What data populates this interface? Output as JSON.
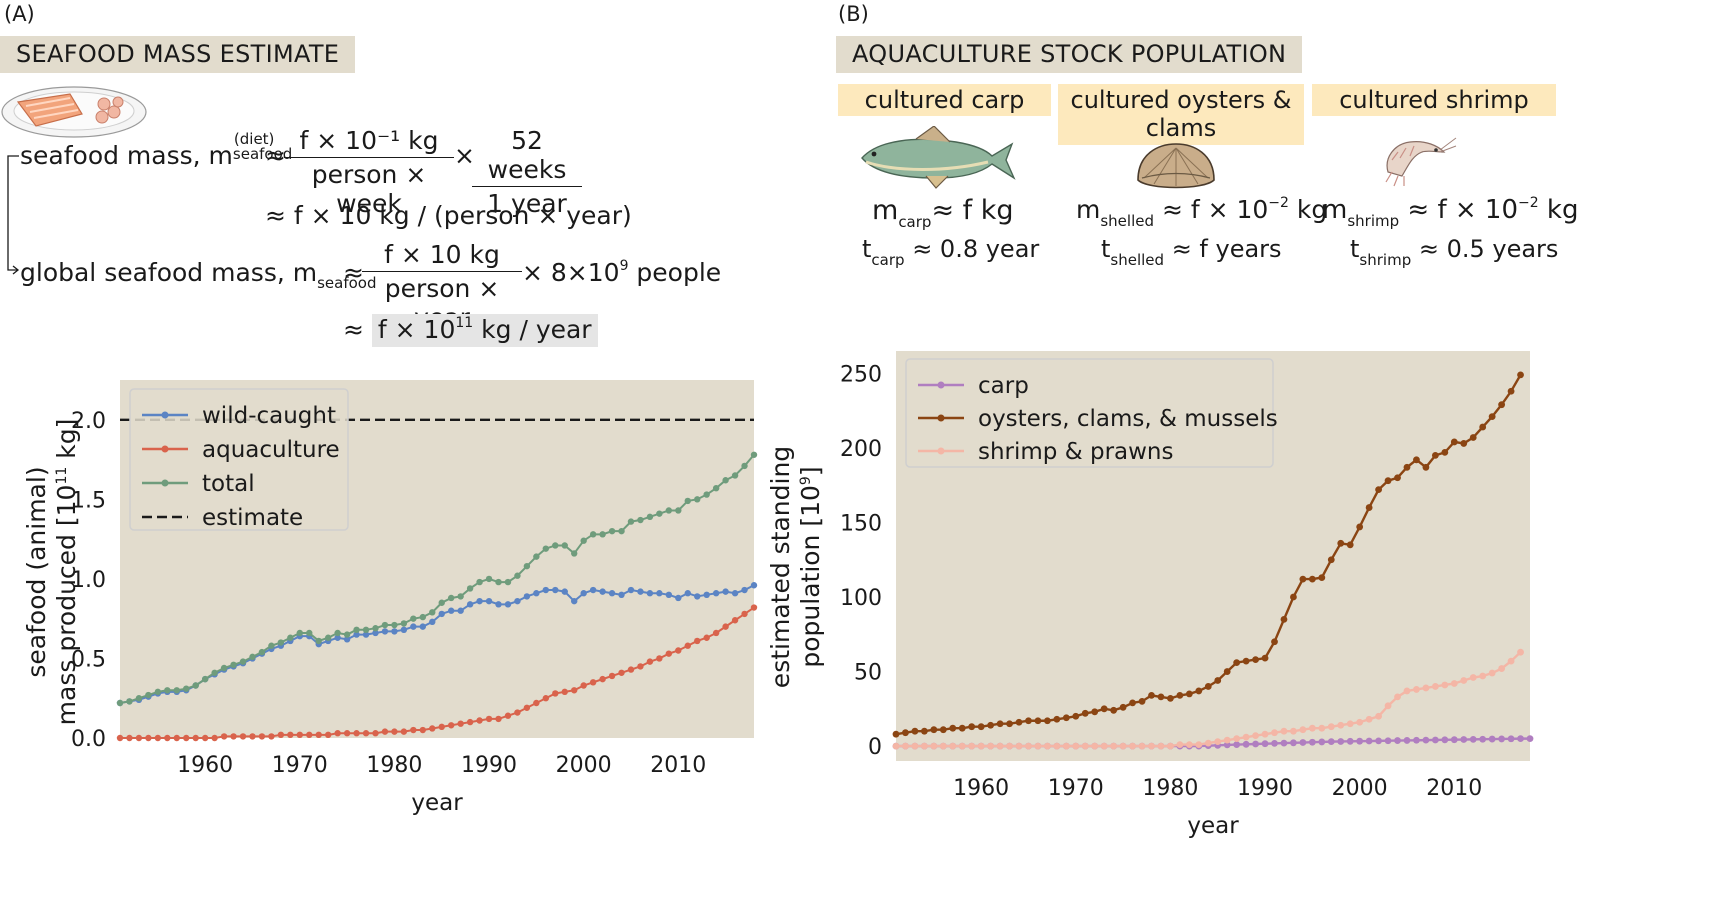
{
  "panel_a": {
    "letter": "(A)",
    "banner": "SEAFOOD MASS ESTIMATE",
    "eq1_lhs": "seafood mass, m",
    "eq1_sub": "seafood",
    "eq1_sup": "(diet)",
    "approx": "≈",
    "eq1_num1": "f × 10⁻¹ kg",
    "eq1_den1": "person × week",
    "times": "×",
    "eq1_num2": "52 weeks",
    "eq1_den2": "1 year",
    "eq2": "≈ f × 10 kg / (person × year)",
    "eq3_lhs": "global seafood mass, m",
    "eq3_sub": "seafood",
    "eq3_num": "f × 10 kg",
    "eq3_den": "person × year",
    "eq3_tail": "× 8×10",
    "eq3_tail_sup": "9",
    "eq3_tail_end": " people",
    "eq4_prefix": "≈",
    "eq4_main": "f × 10",
    "eq4_sup": "11",
    "eq4_end": " kg / year"
  },
  "panel_b": {
    "letter": "(B)",
    "banner": "AQUACULTURE STOCK POPULATION",
    "carp_tag": "cultured carp",
    "oysters_tag_l1": "cultured oysters &",
    "oysters_tag_l2": "clams",
    "shrimp_tag": "cultured shrimp",
    "carp_m": "m",
    "carp_m_sub": "carp",
    "carp_m_rhs": "≈ f kg",
    "carp_t": "t",
    "carp_t_sub": "carp",
    "carp_t_rhs": " ≈ 0.8 year",
    "shell_m": "m",
    "shell_m_sub": "shelled",
    "shell_m_rhs": " ≈ f × 10",
    "shell_m_sup": "−2",
    "shell_m_end": " kg",
    "shell_t": "t",
    "shell_t_sub": "shelled",
    "shell_t_rhs": " ≈ f years",
    "shrimp_m": "m",
    "shrimp_m_sub": "shrimp",
    "shrimp_m_rhs": " ≈ f × 10",
    "shrimp_m_sup": "−2",
    "shrimp_m_end": " kg",
    "shrimp_t": "t",
    "shrimp_t_sub": "shrimp",
    "shrimp_t_rhs": " ≈ 0.5 years"
  },
  "colors": {
    "plot_bg": "#e2dccd",
    "wild": "#5b84c4",
    "aqua": "#d9634c",
    "total": "#6f9c7c",
    "carp": "#b07ec0",
    "oysters": "#8b4513",
    "shrimp": "#f4b6a6"
  },
  "chart_data": [
    {
      "type": "line",
      "xlabel": "year",
      "ylabel_l1": "seafood (animal)",
      "ylabel_l2": "mass produced [10",
      "ylabel_sup": "11",
      "ylabel_end": " kg]",
      "xlim": [
        1951,
        2018
      ],
      "ylim": [
        0,
        2.25
      ],
      "xticks": [
        1960,
        1970,
        1980,
        1990,
        2000,
        2010
      ],
      "yticks": [
        0.0,
        0.5,
        1.0,
        1.5,
        2.0
      ],
      "ytick_labels": [
        "0.0",
        "0.5",
        "1.0",
        "1.5",
        "2.0"
      ],
      "legend_position": "top-left",
      "estimate": {
        "name": "estimate",
        "value": 2.0
      },
      "x_start": 1951,
      "series": [
        {
          "name": "wild-caught",
          "color": "#5b84c4",
          "values": [
            0.22,
            0.23,
            0.24,
            0.26,
            0.28,
            0.29,
            0.29,
            0.3,
            0.33,
            0.37,
            0.4,
            0.43,
            0.45,
            0.47,
            0.5,
            0.53,
            0.56,
            0.58,
            0.61,
            0.64,
            0.64,
            0.59,
            0.61,
            0.63,
            0.62,
            0.65,
            0.65,
            0.66,
            0.67,
            0.67,
            0.68,
            0.7,
            0.7,
            0.73,
            0.78,
            0.8,
            0.8,
            0.84,
            0.86,
            0.86,
            0.84,
            0.84,
            0.86,
            0.89,
            0.91,
            0.93,
            0.93,
            0.92,
            0.86,
            0.91,
            0.93,
            0.92,
            0.91,
            0.9,
            0.93,
            0.92,
            0.91,
            0.91,
            0.9,
            0.88,
            0.91,
            0.89,
            0.9,
            0.91,
            0.92,
            0.91,
            0.93,
            0.96
          ]
        },
        {
          "name": "aquaculture",
          "color": "#d9634c",
          "values": [
            0.0,
            0.0,
            0.0,
            0.0,
            0.0,
            0.0,
            0.0,
            0.0,
            0.0,
            0.0,
            0.0,
            0.01,
            0.01,
            0.01,
            0.01,
            0.01,
            0.01,
            0.02,
            0.02,
            0.02,
            0.02,
            0.02,
            0.02,
            0.03,
            0.03,
            0.03,
            0.03,
            0.03,
            0.04,
            0.04,
            0.04,
            0.05,
            0.05,
            0.06,
            0.07,
            0.08,
            0.09,
            0.1,
            0.11,
            0.12,
            0.12,
            0.14,
            0.16,
            0.19,
            0.22,
            0.25,
            0.28,
            0.29,
            0.3,
            0.33,
            0.35,
            0.37,
            0.39,
            0.41,
            0.43,
            0.45,
            0.48,
            0.5,
            0.53,
            0.55,
            0.58,
            0.61,
            0.63,
            0.66,
            0.7,
            0.74,
            0.78,
            0.82
          ]
        },
        {
          "name": "total",
          "color": "#6f9c7c",
          "values": [
            0.22,
            0.23,
            0.25,
            0.27,
            0.29,
            0.3,
            0.3,
            0.31,
            0.33,
            0.37,
            0.41,
            0.44,
            0.46,
            0.48,
            0.51,
            0.54,
            0.58,
            0.6,
            0.63,
            0.66,
            0.66,
            0.61,
            0.63,
            0.66,
            0.65,
            0.68,
            0.68,
            0.69,
            0.71,
            0.71,
            0.72,
            0.75,
            0.76,
            0.79,
            0.85,
            0.88,
            0.89,
            0.94,
            0.98,
            1.0,
            0.98,
            0.98,
            1.02,
            1.08,
            1.14,
            1.19,
            1.21,
            1.21,
            1.16,
            1.24,
            1.28,
            1.28,
            1.3,
            1.3,
            1.36,
            1.37,
            1.39,
            1.41,
            1.43,
            1.43,
            1.49,
            1.5,
            1.53,
            1.57,
            1.62,
            1.65,
            1.71,
            1.78
          ]
        },
        {
          "name": "estimate",
          "style": "dashed",
          "color": "#1a1a1a",
          "values": [
            2.0,
            2.0
          ]
        }
      ]
    },
    {
      "type": "line",
      "xlabel": "year",
      "ylabel_l1": "estimated standing",
      "ylabel_l2": "population [10",
      "ylabel_sup": "9",
      "ylabel_end": "]",
      "xlim": [
        1951,
        2018
      ],
      "ylim": [
        -10,
        265
      ],
      "xticks": [
        1960,
        1970,
        1980,
        1990,
        2000,
        2010
      ],
      "yticks": [
        0,
        50,
        100,
        150,
        200,
        250
      ],
      "legend_position": "top-left",
      "x_start": 1951,
      "series": [
        {
          "name": "carp",
          "color": "#b07ec0",
          "values": [
            0.0,
            0.0,
            0.0,
            0.0,
            0.0,
            0.0,
            0.0,
            0.0,
            0.0,
            0.0,
            0.0,
            0.0,
            0.0,
            0.0,
            0.0,
            0.0,
            0.0,
            0.0,
            0.0,
            0.0,
            0.0,
            0.0,
            0.0,
            0.0,
            0.0,
            0.0,
            0.0,
            0.0,
            0.0,
            0.0,
            0.0,
            0.0,
            0.0,
            0.3,
            0.5,
            0.8,
            1.0,
            1.2,
            1.4,
            1.6,
            1.8,
            2.0,
            2.2,
            2.4,
            2.6,
            2.8,
            3.0,
            3.1,
            3.2,
            3.3,
            3.4,
            3.5,
            3.6,
            3.7,
            3.8,
            3.9,
            4.0,
            4.1,
            4.2,
            4.3,
            4.4,
            4.5,
            4.6,
            4.7,
            4.8,
            4.9,
            5.0,
            5.0
          ]
        },
        {
          "name": "oysters, clams, & mussels",
          "color": "#8b4513",
          "values": [
            8,
            9,
            10,
            10,
            11,
            11,
            12,
            12,
            13,
            13,
            14,
            15,
            15,
            16,
            17,
            17,
            17,
            18,
            19,
            20,
            22,
            23,
            25,
            24,
            26,
            29,
            30,
            34,
            33,
            32,
            34,
            35,
            37,
            40,
            44,
            50,
            56,
            57,
            58,
            59,
            70,
            85,
            100,
            112,
            112,
            113,
            125,
            136,
            135,
            147,
            160,
            172,
            178,
            180,
            187,
            192,
            187,
            195,
            197,
            204,
            203,
            207,
            214,
            221,
            229,
            238,
            249
          ]
        },
        {
          "name": "shrimp & prawns",
          "color": "#f4b6a6",
          "values": [
            0,
            0,
            0,
            0,
            0,
            0,
            0,
            0,
            0,
            0,
            0,
            0,
            0,
            0,
            0,
            0,
            0,
            0,
            0,
            0,
            0,
            0,
            0,
            0,
            0,
            0,
            0,
            0,
            0,
            0,
            1,
            1,
            1,
            2,
            3,
            4,
            5,
            6,
            7,
            8,
            9,
            10,
            10,
            11,
            12,
            12,
            13,
            14,
            15,
            16,
            18,
            20,
            27,
            33,
            37,
            38,
            39,
            40,
            41,
            42,
            44,
            46,
            47,
            49,
            52,
            57,
            63
          ]
        }
      ]
    }
  ]
}
